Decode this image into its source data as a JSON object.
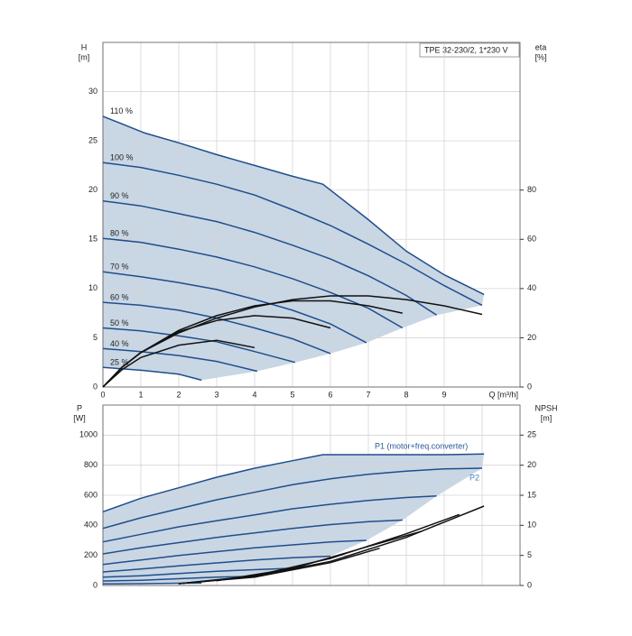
{
  "chart_data": [
    {
      "type": "line",
      "title": "TPE 32-230/2, 1*230 V",
      "y_label": "H",
      "y_unit": "[m]",
      "y2_label": "eta",
      "y2_unit": "[%]",
      "x_label": "Q [m³/h]",
      "xlim": [
        0,
        11
      ],
      "xticks": [
        0,
        1,
        2,
        3,
        4,
        5,
        6,
        7,
        8,
        9
      ],
      "ylim": [
        0,
        35
      ],
      "yticks": [
        0,
        5,
        10,
        15,
        20,
        25,
        30
      ],
      "y2lim": [
        0,
        140
      ],
      "y2ticks": [
        0,
        20,
        40,
        60,
        80
      ],
      "grid": true,
      "envelope_color": "#c9d6e4",
      "series": [
        {
          "name": "110 %",
          "color": "#1f4e8c",
          "x": [
            0,
            1.1,
            2,
            3,
            4,
            5,
            5.8,
            7,
            8,
            9,
            10.05
          ],
          "values": [
            27.5,
            25.8,
            24.8,
            23.6,
            22.5,
            21.4,
            20.6,
            17,
            13.8,
            11.4,
            9.4
          ]
        },
        {
          "name": "100 %",
          "color": "#1f4e8c",
          "x": [
            0,
            1,
            2,
            3,
            4,
            5,
            6,
            7,
            8,
            9,
            10
          ],
          "values": [
            22.8,
            22.3,
            21.5,
            20.6,
            19.5,
            18,
            16.4,
            14.5,
            12.5,
            10.3,
            8.3
          ]
        },
        {
          "name": "90 %",
          "color": "#1f4e8c",
          "x": [
            0,
            1,
            2,
            3,
            4,
            5,
            6,
            7,
            8,
            8.8
          ],
          "values": [
            18.9,
            18.4,
            17.6,
            16.8,
            15.7,
            14.4,
            13,
            11.3,
            9.3,
            7.3
          ]
        },
        {
          "name": "80 %",
          "color": "#1f4e8c",
          "x": [
            0,
            1,
            2,
            3,
            4,
            5,
            6,
            7,
            7.9
          ],
          "values": [
            15.1,
            14.7,
            14,
            13.2,
            12.2,
            11,
            9.6,
            8,
            6
          ]
        },
        {
          "name": "70 %",
          "color": "#1f4e8c",
          "x": [
            0,
            1,
            2,
            3,
            4,
            5,
            6,
            6.95
          ],
          "values": [
            11.7,
            11.2,
            10.6,
            9.9,
            8.9,
            7.8,
            6.4,
            4.5
          ]
        },
        {
          "name": "60 %",
          "color": "#1f4e8c",
          "x": [
            0,
            1,
            2,
            3,
            4,
            5,
            6
          ],
          "values": [
            8.6,
            8.3,
            7.8,
            7,
            6,
            4.9,
            3.4
          ]
        },
        {
          "name": "50 %",
          "color": "#1f4e8c",
          "x": [
            0,
            1,
            2,
            3,
            4,
            5.07
          ],
          "values": [
            6,
            5.7,
            5.2,
            4.6,
            3.6,
            2.5
          ]
        },
        {
          "name": "40 %",
          "color": "#1f4e8c",
          "x": [
            0,
            1,
            2,
            3,
            4.07
          ],
          "values": [
            3.9,
            3.6,
            3.2,
            2.6,
            1.6
          ]
        },
        {
          "name": "25 %",
          "color": "#1f4e8c",
          "x": [
            0,
            1,
            2,
            2.6
          ],
          "values": [
            2,
            1.7,
            1.3,
            0.7
          ]
        },
        {
          "axis": "y2",
          "color": "#111111",
          "x": [
            0,
            0.5,
            1,
            2,
            3,
            4,
            5,
            6,
            7,
            8,
            9,
            10
          ],
          "values": [
            0,
            8,
            14,
            22,
            28,
            32.5,
            35.5,
            37,
            37,
            35.5,
            33,
            29.5
          ]
        },
        {
          "axis": "y2",
          "color": "#111111",
          "x": [
            0,
            0.5,
            1,
            2,
            3,
            4,
            5,
            6,
            7,
            7.9
          ],
          "values": [
            0,
            8,
            14,
            23,
            29,
            33,
            35,
            35,
            33,
            30
          ]
        },
        {
          "axis": "y2",
          "color": "#111111",
          "x": [
            0,
            0.5,
            1,
            2,
            3,
            4,
            5,
            6
          ],
          "values": [
            0,
            8,
            14,
            22.5,
            27,
            29,
            28,
            24
          ]
        },
        {
          "axis": "y2",
          "color": "#111111",
          "x": [
            0,
            0.5,
            1,
            2,
            3,
            4
          ],
          "values": [
            0,
            7,
            12,
            17,
            19,
            16
          ]
        }
      ]
    },
    {
      "type": "line",
      "y_label": "P",
      "y_unit": "[W]",
      "y2_label": "NPSH",
      "y2_unit": "[m]",
      "annotations": [
        "P1 (motor+freq.converter)",
        "P2"
      ],
      "xlim": [
        0,
        11
      ],
      "xticks": [
        0,
        1,
        2,
        3,
        4,
        5,
        6,
        7,
        8,
        9,
        10
      ],
      "x_tick_labels": false,
      "ylim": [
        0,
        1200
      ],
      "yticks": [
        0,
        200,
        400,
        600,
        800,
        1000
      ],
      "y2lim": [
        0,
        30
      ],
      "y2ticks": [
        0,
        5,
        10,
        15,
        20,
        25
      ],
      "grid": true,
      "envelope_color": "#c9d6e4",
      "series": [
        {
          "color": "#1f4e8c",
          "x": [
            0,
            1,
            2,
            3,
            4,
            5,
            5.8,
            7,
            8,
            9,
            10.05
          ],
          "values": [
            490,
            580,
            650,
            720,
            780,
            830,
            870,
            870,
            870,
            870,
            875
          ]
        },
        {
          "color": "#1f4e8c",
          "x": [
            0,
            1,
            2,
            3,
            4,
            5,
            6,
            7,
            8,
            9,
            10
          ],
          "values": [
            380,
            450,
            510,
            570,
            620,
            670,
            710,
            740,
            760,
            775,
            780
          ]
        },
        {
          "color": "#1f4e8c",
          "x": [
            0,
            1,
            2,
            3,
            4,
            5,
            6,
            7,
            8,
            8.8
          ],
          "values": [
            290,
            340,
            390,
            430,
            470,
            510,
            540,
            565,
            585,
            595
          ]
        },
        {
          "color": "#1f4e8c",
          "x": [
            0,
            1,
            2,
            3,
            4,
            5,
            6,
            7,
            7.9
          ],
          "values": [
            210,
            250,
            285,
            320,
            350,
            380,
            405,
            425,
            435
          ]
        },
        {
          "color": "#1f4e8c",
          "x": [
            0,
            1,
            2,
            3,
            4,
            5,
            6,
            6.95
          ],
          "values": [
            140,
            170,
            200,
            225,
            250,
            270,
            290,
            300
          ]
        },
        {
          "color": "#1f4e8c",
          "x": [
            0,
            1,
            2,
            3,
            4,
            5,
            6
          ],
          "values": [
            90,
            110,
            130,
            150,
            170,
            185,
            195
          ]
        },
        {
          "color": "#1f4e8c",
          "x": [
            0,
            1,
            2,
            3,
            4,
            5.07
          ],
          "values": [
            55,
            65,
            80,
            95,
            105,
            115
          ]
        },
        {
          "color": "#1f4e8c",
          "x": [
            0,
            1,
            2,
            3,
            4.07
          ],
          "values": [
            30,
            35,
            45,
            55,
            62
          ]
        },
        {
          "color": "#1f4e8c",
          "x": [
            0,
            1,
            2,
            2.6
          ],
          "values": [
            10,
            12,
            15,
            17
          ]
        },
        {
          "axis": "y2",
          "color": "#111111",
          "x": [
            2,
            4,
            6,
            8,
            10.05
          ],
          "values": [
            0.3,
            1.5,
            4,
            8,
            13.2
          ]
        },
        {
          "axis": "y2",
          "color": "#111111",
          "x": [
            2,
            4,
            6,
            8,
            9.4
          ],
          "values": [
            0.3,
            1.6,
            4.5,
            8.6,
            11.8
          ]
        },
        {
          "axis": "y2",
          "color": "#111111",
          "x": [
            3,
            5,
            7,
            8.4
          ],
          "values": [
            0.8,
            2.8,
            6.5,
            9
          ]
        },
        {
          "axis": "y2",
          "color": "#111111",
          "x": [
            2,
            4,
            6,
            7.3
          ],
          "values": [
            0.3,
            1.4,
            3.8,
            6.2
          ]
        }
      ]
    }
  ]
}
